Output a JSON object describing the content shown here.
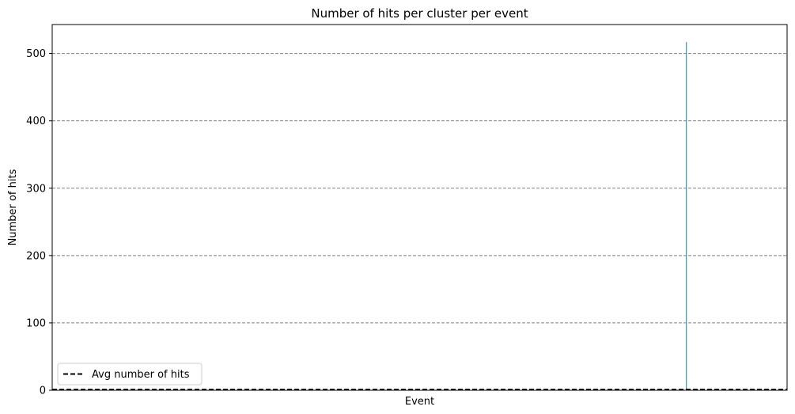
{
  "chart_data": {
    "type": "bar",
    "title": "Number of hits per cluster per event",
    "xlabel": "Event",
    "ylabel": "Number of hits",
    "ylim": [
      0,
      543
    ],
    "yticks": [
      0,
      100,
      200,
      300,
      400,
      500
    ],
    "grid": {
      "axis": "y",
      "style": "dashed",
      "color": "#808080"
    },
    "x_tick_labels_shown": false,
    "xlim": [
      0,
      1000
    ],
    "series": [
      {
        "values": [
          {
            "x": 863,
            "y": 517
          }
        ],
        "color": "#1f77b4"
      }
    ],
    "reference_lines": [
      {
        "name": "Avg number of hits",
        "orientation": "horizontal",
        "y": 1,
        "style": "dashed",
        "color": "#000000"
      }
    ],
    "legend": {
      "placement": "lower-left",
      "entries": [
        "Avg number of hits"
      ]
    }
  }
}
